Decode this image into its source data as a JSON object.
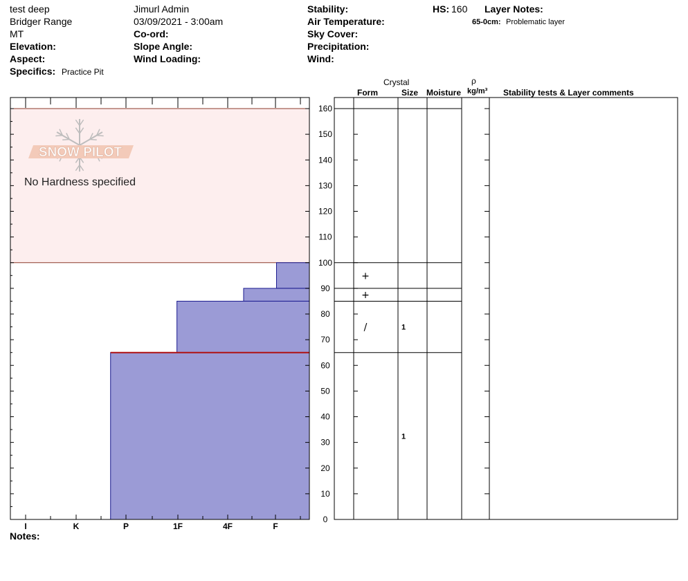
{
  "header": {
    "pit_name": "test deep",
    "range": "Bridger Range",
    "state": "MT",
    "user": "Jimurl Admin",
    "datetime": "03/09/2021 - 3:00am",
    "labels": {
      "elevation": "Elevation:",
      "aspect": "Aspect:",
      "specifics": "Specifics:",
      "coord": "Co-ord:",
      "slope_angle": "Slope Angle:",
      "wind_loading": "Wind Loading:",
      "stability": "Stability:",
      "air_temperature": "Air Temperature:",
      "sky_cover": "Sky Cover:",
      "precipitation": "Precipitation:",
      "wind": "Wind:",
      "hs": "HS:",
      "layer_notes": "Layer Notes:",
      "notes": "Notes:"
    },
    "specifics_value": "Practice Pit",
    "hs_value": "160",
    "layer_note_range": "65-0cm:",
    "layer_note_text": "Problematic layer"
  },
  "columns": {
    "crystal": "Crystal",
    "form": "Form",
    "size": "Size",
    "moisture": "Moisture",
    "rho": "ρ",
    "density_unit": "kg/m³",
    "stability_comments": "Stability tests & Layer comments"
  },
  "watermark": {
    "logo_text": "SNOW PILOT",
    "no_hardness": "No Hardness specified"
  },
  "chart_data": {
    "type": "bar",
    "ylim": [
      0,
      160
    ],
    "yticks": [
      0,
      10,
      20,
      30,
      40,
      50,
      60,
      70,
      80,
      90,
      100,
      110,
      120,
      130,
      140,
      150,
      160
    ],
    "xlabels": [
      "I",
      "K",
      "P",
      "1F",
      "4F",
      "F"
    ],
    "hs": 160,
    "no_hardness_range": [
      100,
      160
    ],
    "layers": [
      {
        "top": 100,
        "bottom": 90,
        "hardness_x": 0.89,
        "form": "+",
        "size": ""
      },
      {
        "top": 90,
        "bottom": 85,
        "hardness_x": 0.78,
        "form": "+",
        "size": ""
      },
      {
        "top": 85,
        "bottom": 65,
        "hardness_x": 0.557,
        "form": "/",
        "size": "1"
      },
      {
        "top": 65,
        "bottom": 0,
        "hardness_x": 0.335,
        "form": "",
        "size": "1"
      }
    ],
    "problem_layer_depth": 65
  },
  "colors": {
    "layer_fill": "#9b9bd6",
    "layer_stroke": "#1b1b8f",
    "no_hardness_fill": "#fdeeee",
    "no_hardness_stroke": "#8b3a2a",
    "problem_line": "#b01010",
    "logo_color": "#f2c7b4"
  }
}
